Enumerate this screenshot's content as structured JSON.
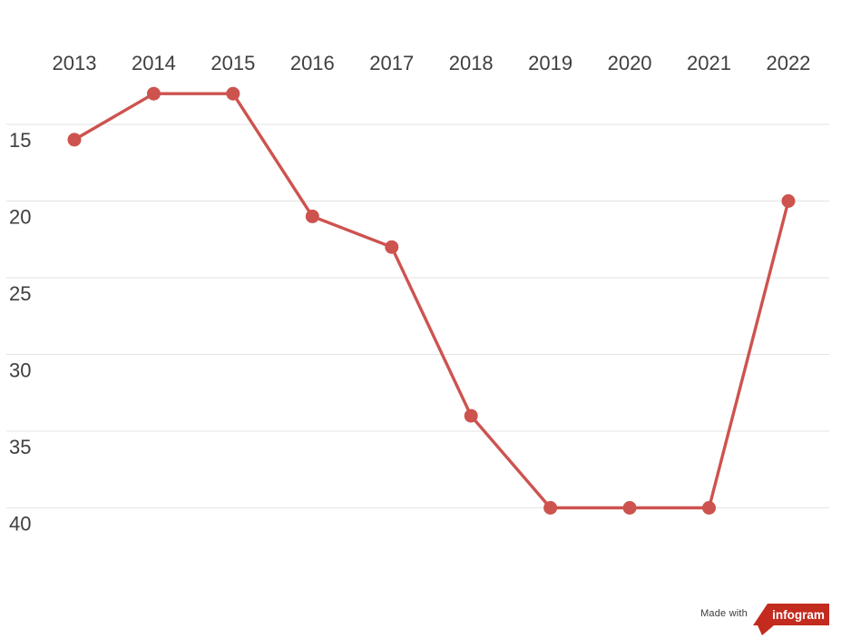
{
  "chart_data": {
    "type": "line",
    "title": "",
    "xlabel": "",
    "ylabel": "",
    "categories": [
      "2013",
      "2014",
      "2015",
      "2016",
      "2017",
      "2018",
      "2019",
      "2020",
      "2021",
      "2022"
    ],
    "series": [
      {
        "values": [
          16,
          13,
          13,
          21,
          23,
          34,
          40,
          40,
          40,
          20
        ]
      }
    ],
    "y_axis": {
      "ticks": [
        15,
        20,
        25,
        30,
        35,
        40
      ],
      "reversed": true,
      "range": [
        11,
        43
      ]
    },
    "x_axis": {
      "position": "top"
    },
    "grid": "horizontal",
    "legend": "none",
    "marker": "circle",
    "colors": {
      "line": "#cd534f",
      "grid": "#e3e3e3",
      "tick_text": "#3f3f3f",
      "background": "#ffffff"
    }
  },
  "badge": {
    "made_with_label": "Made with",
    "brand_label": "infogram",
    "flag_color": "#c32b1f",
    "brand_text_color": "#ffffff"
  }
}
